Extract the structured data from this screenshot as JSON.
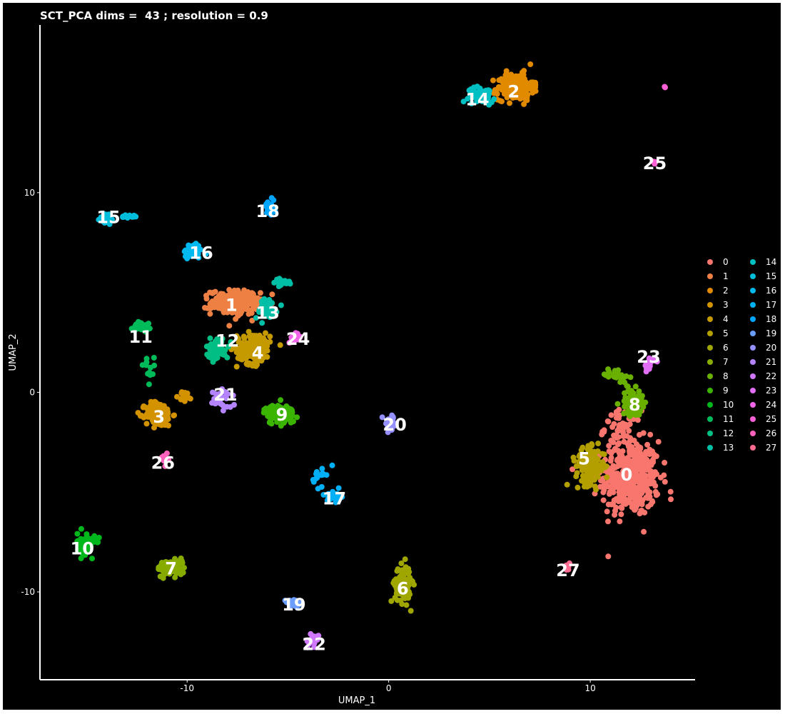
{
  "chart_data": {
    "type": "scatter",
    "title": "SCT_PCA dims =  43 ; resolution = 0.9",
    "xlabel": "UMAP_1",
    "ylabel": "UMAP_2",
    "xlim": [
      -17.3,
      15.2
    ],
    "ylim": [
      -14.4,
      18.4
    ],
    "x_ticks": [
      {
        "value": -10,
        "label": "-10"
      },
      {
        "value": 0,
        "label": "0"
      },
      {
        "value": 10,
        "label": "10"
      }
    ],
    "y_ticks": [
      {
        "value": 10,
        "label": "10"
      },
      {
        "value": 0,
        "label": "0"
      },
      {
        "value": -10,
        "label": "-10"
      }
    ],
    "grid": false,
    "background": "#000000",
    "legend_position": "right",
    "legend_columns": 2,
    "clusters": [
      {
        "name": "0",
        "color": "#F8766D",
        "label_x": 11.8,
        "label_y": -4.1,
        "sub": [
          {
            "cx": 12.0,
            "cy": -4.3,
            "sx": 1.3,
            "sy": 1.7,
            "n": 420
          },
          {
            "cx": 11.6,
            "cy": -1.8,
            "sx": 0.8,
            "sy": 0.8,
            "n": 60
          }
        ]
      },
      {
        "name": "1",
        "color": "#EE8044",
        "label_x": -7.8,
        "label_y": 4.4,
        "sub": [
          {
            "cx": -7.6,
            "cy": 4.5,
            "sx": 1.1,
            "sy": 0.55,
            "n": 230
          }
        ]
      },
      {
        "name": "2",
        "color": "#E18A00",
        "label_x": 6.2,
        "label_y": 15.1,
        "sub": [
          {
            "cx": 6.3,
            "cy": 15.3,
            "sx": 0.8,
            "sy": 0.6,
            "n": 200
          }
        ]
      },
      {
        "name": "3",
        "color": "#D39200",
        "label_x": -11.4,
        "label_y": -1.2,
        "sub": [
          {
            "cx": -11.4,
            "cy": -1.1,
            "sx": 0.6,
            "sy": 0.55,
            "n": 160
          },
          {
            "cx": -10.1,
            "cy": -0.2,
            "sx": 0.3,
            "sy": 0.25,
            "n": 14
          }
        ]
      },
      {
        "name": "4",
        "color": "#C49A00",
        "label_x": -6.5,
        "label_y": 2.0,
        "sub": [
          {
            "cx": -6.7,
            "cy": 2.2,
            "sx": 0.75,
            "sy": 0.7,
            "n": 170
          }
        ]
      },
      {
        "name": "5",
        "color": "#B3A000",
        "label_x": 9.7,
        "label_y": -3.3,
        "sub": [
          {
            "cx": 10.0,
            "cy": -3.7,
            "sx": 0.65,
            "sy": 0.8,
            "n": 150
          }
        ]
      },
      {
        "name": "6",
        "color": "#A0A600",
        "label_x": 0.7,
        "label_y": -9.8,
        "sub": [
          {
            "cx": 0.7,
            "cy": -9.6,
            "sx": 0.35,
            "sy": 0.85,
            "n": 130
          }
        ]
      },
      {
        "name": "7",
        "color": "#88AB00",
        "label_x": -10.8,
        "label_y": -8.8,
        "sub": [
          {
            "cx": -10.8,
            "cy": -8.8,
            "sx": 0.6,
            "sy": 0.35,
            "n": 110
          }
        ]
      },
      {
        "name": "8",
        "color": "#69B000",
        "label_x": 12.2,
        "label_y": -0.6,
        "sub": [
          {
            "cx": 12.1,
            "cy": -0.5,
            "sx": 0.45,
            "sy": 0.6,
            "n": 80
          },
          {
            "cx": 11.3,
            "cy": 0.9,
            "sx": 0.5,
            "sy": 0.3,
            "n": 30
          }
        ]
      },
      {
        "name": "9",
        "color": "#3AB400",
        "label_x": -5.3,
        "label_y": -1.1,
        "sub": [
          {
            "cx": -5.4,
            "cy": -1.1,
            "sx": 0.7,
            "sy": 0.45,
            "n": 110
          }
        ]
      },
      {
        "name": "10",
        "color": "#00B81B",
        "label_x": -15.2,
        "label_y": -7.8,
        "sub": [
          {
            "cx": -15.0,
            "cy": -7.6,
            "sx": 0.4,
            "sy": 0.5,
            "n": 70
          }
        ]
      },
      {
        "name": "11",
        "color": "#00BB59",
        "label_x": -12.3,
        "label_y": 2.8,
        "sub": [
          {
            "cx": -12.3,
            "cy": 3.3,
            "sx": 0.35,
            "sy": 0.25,
            "n": 45
          },
          {
            "cx": -11.9,
            "cy": 1.2,
            "sx": 0.3,
            "sy": 0.5,
            "n": 12
          }
        ]
      },
      {
        "name": "12",
        "color": "#00BE84",
        "label_x": -8.0,
        "label_y": 2.6,
        "sub": [
          {
            "cx": -8.5,
            "cy": 2.2,
            "sx": 0.5,
            "sy": 0.5,
            "n": 60
          }
        ]
      },
      {
        "name": "13",
        "color": "#00BFA6",
        "label_x": -6.0,
        "label_y": 4.0,
        "sub": [
          {
            "cx": -6.1,
            "cy": 4.2,
            "sx": 0.5,
            "sy": 0.5,
            "n": 55
          },
          {
            "cx": -5.3,
            "cy": 5.5,
            "sx": 0.5,
            "sy": 0.15,
            "n": 25
          }
        ]
      },
      {
        "name": "14",
        "color": "#00C0C3",
        "label_x": 4.4,
        "label_y": 14.7,
        "sub": [
          {
            "cx": 4.6,
            "cy": 14.9,
            "sx": 0.6,
            "sy": 0.35,
            "n": 55
          }
        ]
      },
      {
        "name": "15",
        "color": "#00BEDB",
        "label_x": -13.9,
        "label_y": 8.8,
        "sub": [
          {
            "cx": -14.0,
            "cy": 8.7,
            "sx": 0.3,
            "sy": 0.25,
            "n": 30
          },
          {
            "cx": -12.9,
            "cy": 8.8,
            "sx": 0.3,
            "sy": 0.08,
            "n": 15
          }
        ]
      },
      {
        "name": "16",
        "color": "#00BAEF",
        "label_x": -9.3,
        "label_y": 7.0,
        "sub": [
          {
            "cx": -9.7,
            "cy": 7.1,
            "sx": 0.45,
            "sy": 0.35,
            "n": 45
          }
        ]
      },
      {
        "name": "17",
        "color": "#00B0F6",
        "label_x": -2.7,
        "label_y": -5.3,
        "sub": [
          {
            "cx": -2.7,
            "cy": -5.2,
            "sx": 0.3,
            "sy": 0.25,
            "n": 30
          },
          {
            "cx": -3.4,
            "cy": -4.2,
            "sx": 0.3,
            "sy": 0.45,
            "n": 15
          }
        ]
      },
      {
        "name": "18",
        "color": "#00A5FF",
        "label_x": -6.0,
        "label_y": 9.1,
        "sub": [
          {
            "cx": -5.9,
            "cy": 9.2,
            "sx": 0.25,
            "sy": 0.35,
            "n": 30
          }
        ]
      },
      {
        "name": "19",
        "color": "#6B9EFF",
        "label_x": -4.7,
        "label_y": -10.6,
        "sub": [
          {
            "cx": -4.8,
            "cy": -10.6,
            "sx": 0.4,
            "sy": 0.2,
            "n": 35
          }
        ]
      },
      {
        "name": "20",
        "color": "#9590FF",
        "label_x": 0.3,
        "label_y": -1.6,
        "sub": [
          {
            "cx": 0.1,
            "cy": -1.6,
            "sx": 0.35,
            "sy": 0.4,
            "n": 30
          }
        ]
      },
      {
        "name": "21",
        "color": "#B484FF",
        "label_x": -8.1,
        "label_y": -0.1,
        "sub": [
          {
            "cx": -8.3,
            "cy": -0.3,
            "sx": 0.45,
            "sy": 0.45,
            "n": 35
          }
        ]
      },
      {
        "name": "22",
        "color": "#CF78FF",
        "label_x": -3.7,
        "label_y": -12.6,
        "sub": [
          {
            "cx": -3.7,
            "cy": -12.5,
            "sx": 0.2,
            "sy": 0.3,
            "n": 18
          }
        ]
      },
      {
        "name": "23",
        "color": "#E36EF6",
        "label_x": 12.9,
        "label_y": 1.8,
        "sub": [
          {
            "cx": 12.9,
            "cy": 1.5,
            "sx": 0.25,
            "sy": 0.4,
            "n": 15
          }
        ]
      },
      {
        "name": "24",
        "color": "#F166E8",
        "label_x": -4.5,
        "label_y": 2.7,
        "sub": [
          {
            "cx": -4.7,
            "cy": 2.7,
            "sx": 0.3,
            "sy": 0.25,
            "n": 20
          }
        ]
      },
      {
        "name": "25",
        "color": "#FB61D7",
        "label_x": 13.2,
        "label_y": 11.5,
        "sub": [
          {
            "cx": 13.2,
            "cy": 11.5,
            "sx": 0.12,
            "sy": 0.12,
            "n": 4
          },
          {
            "cx": 13.7,
            "cy": 15.3,
            "sx": 0.05,
            "sy": 0.05,
            "n": 2
          }
        ]
      },
      {
        "name": "26",
        "color": "#FF62BC",
        "label_x": -11.2,
        "label_y": -3.5,
        "sub": [
          {
            "cx": -11.1,
            "cy": -3.3,
            "sx": 0.2,
            "sy": 0.3,
            "n": 10
          }
        ]
      },
      {
        "name": "27",
        "color": "#FF6C91",
        "label_x": 8.9,
        "label_y": -8.9,
        "sub": [
          {
            "cx": 8.9,
            "cy": -8.8,
            "sx": 0.2,
            "sy": 0.2,
            "n": 8
          }
        ]
      }
    ]
  }
}
